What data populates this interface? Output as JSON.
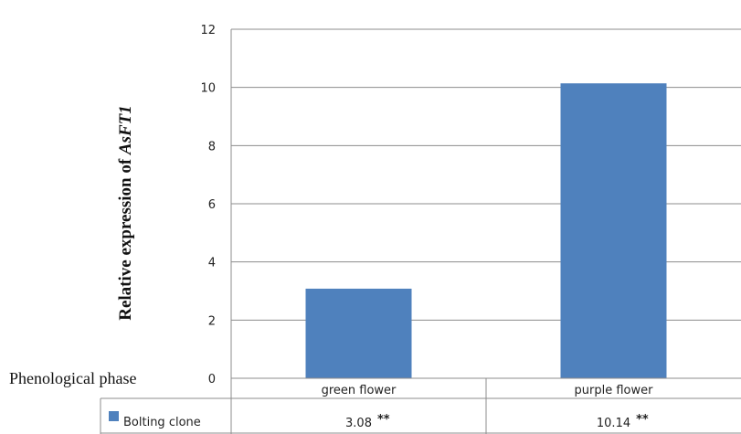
{
  "chart_data": {
    "type": "bar",
    "ylabel_prefix": "Relative expression of ",
    "ylabel_gene": "AsFT1",
    "row_label": "Phenological phase",
    "categories": [
      "green flower",
      "purple flower"
    ],
    "series": [
      {
        "name": "Bolting clone",
        "values": [
          3.08,
          10.14
        ],
        "value_labels": [
          "3.08",
          "10.14"
        ],
        "significance": [
          "**",
          "**"
        ],
        "color": "#4f81bd"
      }
    ],
    "yticks": [
      "0",
      "2",
      "4",
      "6",
      "8",
      "10",
      "12"
    ],
    "ylim": [
      0,
      12
    ],
    "grid": true,
    "legend": "data-table"
  }
}
